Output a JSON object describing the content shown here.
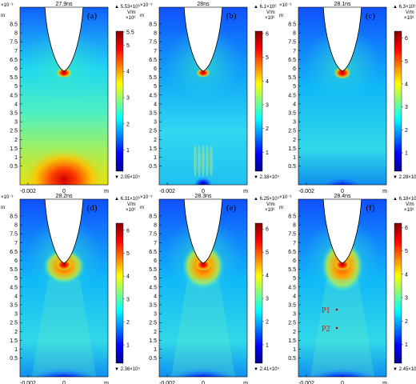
{
  "figure": {
    "y_axis_multiplier": "×10⁻³",
    "y_ticks": [
      "8.5",
      "8",
      "7.5",
      "7",
      "6.5",
      "6",
      "5.5",
      "5",
      "4.5",
      "4",
      "3.5",
      "3",
      "2.5",
      "2",
      "1.5",
      "1",
      "0.5"
    ],
    "x_ticks": [
      "-0.002",
      "0"
    ],
    "x_axis_end": "m",
    "y_axis_end": "m",
    "colorbar_ticks": [
      "1",
      "2",
      "3",
      "4",
      "5",
      "6"
    ],
    "colorbar_unit": "V/m"
  },
  "panels": [
    {
      "time": "27.9ns",
      "letter": "(a)",
      "cbar_max": "▲ 5.53×10⁶",
      "cbar_exp": "×10⁶",
      "cbar_min": "▼ 2.05×10⁵",
      "top_tick": "5.5",
      "mode": "a"
    },
    {
      "time": "28ns",
      "letter": "(b)",
      "cbar_max": "▲ 6.1×10⁶",
      "cbar_exp": "×10⁶",
      "cbar_min": "▼ 2.18×10⁵",
      "top_tick": "6",
      "mode": "b"
    },
    {
      "time": "28.1ns",
      "letter": "(c)",
      "cbar_max": "▲ 6.3×10⁶",
      "cbar_exp": "×10⁶",
      "cbar_min": "▼ 2.28×10⁵",
      "top_tick": "6",
      "mode": "c"
    },
    {
      "time": "28.2ns",
      "letter": "(d)",
      "cbar_max": "▲ 6.31×10⁶",
      "cbar_exp": "×10⁶",
      "cbar_min": "▼ 2.36×10⁵",
      "top_tick": "6",
      "mode": "d"
    },
    {
      "time": "28.3ns",
      "letter": "(e)",
      "cbar_max": "▲ 6.25×10⁶",
      "cbar_exp": "×10⁶",
      "cbar_min": "▼ 2.41×10⁵",
      "top_tick": "6",
      "mode": "e"
    },
    {
      "time": "28.4ns",
      "letter": "(f)",
      "cbar_max": "▲ 6.18×10⁶",
      "cbar_exp": "×10⁶",
      "cbar_min": "▼ 2.45×10⁵",
      "top_tick": "6",
      "mode": "f",
      "points": [
        {
          "label": "P1"
        },
        {
          "label": "P2"
        }
      ]
    }
  ]
}
